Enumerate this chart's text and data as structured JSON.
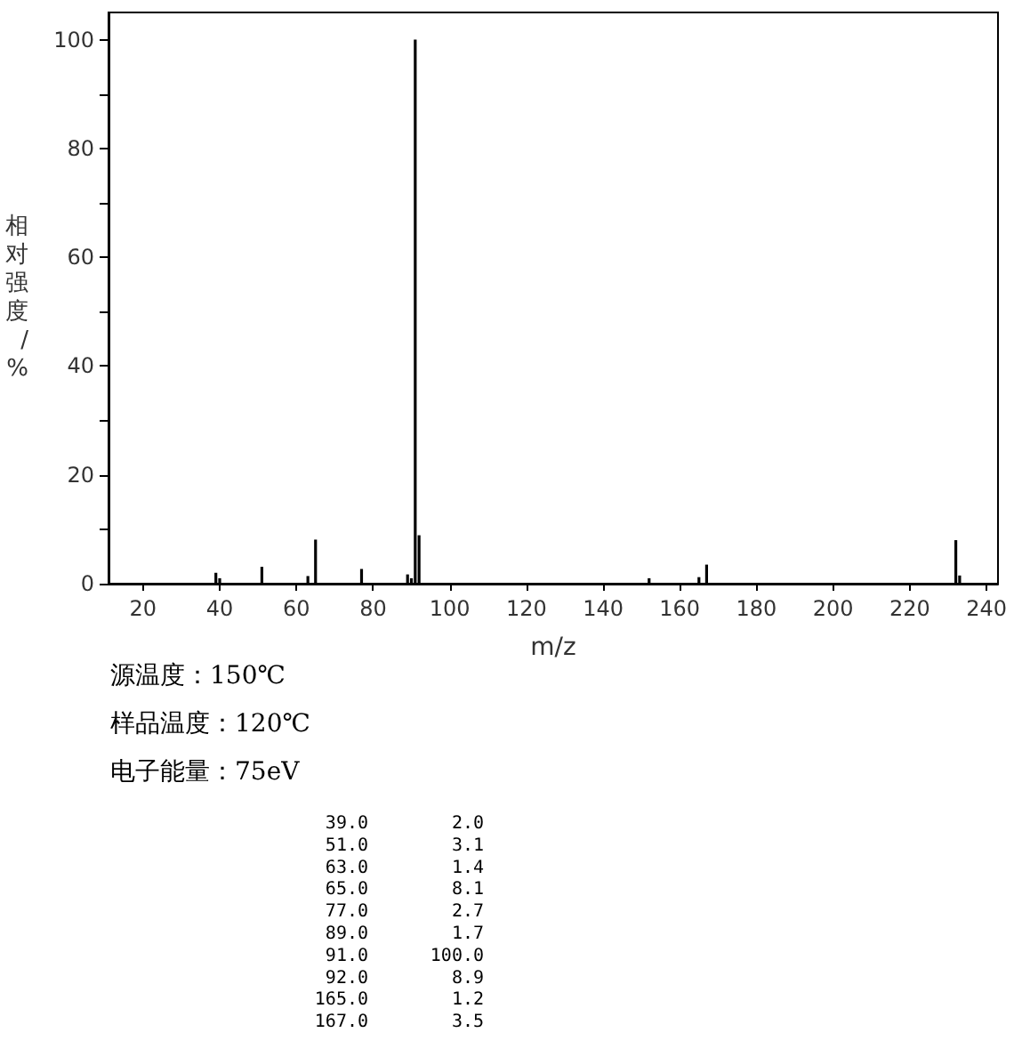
{
  "chart_data": [
    {
      "type": "bar",
      "xlabel": "m/z",
      "ylabel": "相对强度/%",
      "x": [
        39,
        40,
        51,
        63,
        65,
        77,
        89,
        90,
        91,
        92,
        152,
        165,
        167,
        232,
        233
      ],
      "values": [
        2.0,
        1.0,
        3.1,
        1.4,
        8.1,
        2.7,
        1.7,
        1.0,
        100.0,
        8.9,
        1.0,
        1.2,
        3.5,
        8.0,
        1.5
      ],
      "color": "#000000",
      "xlim": [
        11,
        243
      ],
      "xticks": [
        20,
        40,
        60,
        80,
        100,
        120,
        140,
        160,
        180,
        200,
        220,
        240
      ],
      "ylim": [
        0,
        105
      ],
      "yticks": [
        0,
        {
          "value": 10,
          "label": null
        },
        20,
        {
          "value": 30,
          "label": null
        },
        40,
        {
          "value": 50,
          "label": null
        },
        60,
        {
          "value": 70,
          "label": null
        },
        80,
        {
          "value": 90,
          "label": null
        },
        100
      ],
      "grid": false,
      "annotations": [
        "源温度：150℃",
        "样品温度：120℃",
        "电子能量：75eV"
      ]
    },
    {
      "type": "other",
      "categories": [
        "39.0",
        "51.0",
        "63.0",
        "65.0",
        "77.0",
        "89.0",
        "91.0",
        "92.0",
        "165.0",
        "167.0"
      ],
      "value_labels": [
        "2.0",
        "3.1",
        "1.4",
        "8.1",
        "2.7",
        "1.7",
        "100.0",
        "8.9",
        "1.2",
        "3.5"
      ]
    }
  ]
}
